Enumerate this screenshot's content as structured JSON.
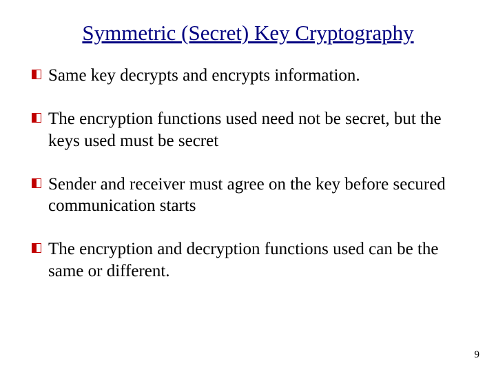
{
  "title": "Symmetric (Secret) Key Cryptography",
  "title_color": "#000080",
  "title_fontsize": 31,
  "body_fontsize": 25,
  "text_color": "#000000",
  "background_color": "#ffffff",
  "bullet_marker": {
    "size": 14,
    "stroke": "#c00000",
    "fill_left": "#c00000",
    "fill_right": "#ffffff"
  },
  "bullets": [
    {
      "html": "Same key decrypts and encrypts information."
    },
    {
      "html": "The encryption functions used need not be secret, but the keys used must be secret"
    },
    {
      "html": "Sender and receiver must agree on the key before secured communication starts"
    },
    {
      "html": "The encryption and decryption functions used can be the same or different."
    }
  ],
  "page_number": "9"
}
